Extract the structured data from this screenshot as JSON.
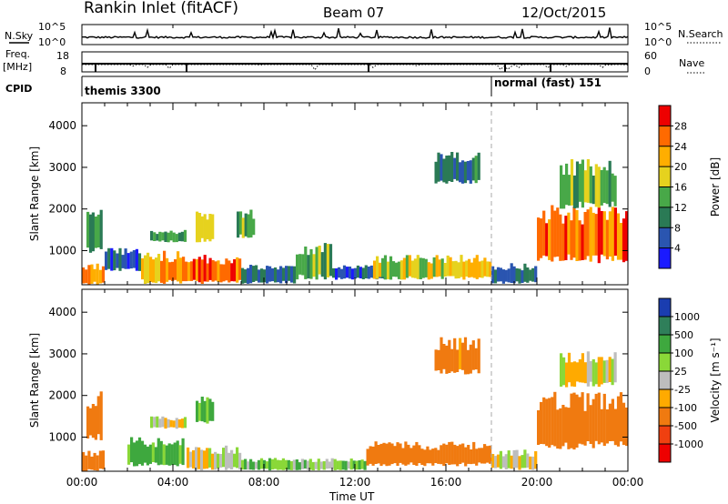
{
  "header": {
    "station": "Rankin Inlet (fitACF)",
    "beam": "Beam 07",
    "date": "12/Oct/2015"
  },
  "noise_panel": {
    "left_label": "N.Sky",
    "right_label": "N.Search",
    "left_ticks": [
      "10^5",
      "10^0"
    ],
    "right_ticks": [
      "10^5",
      "10^0"
    ]
  },
  "freq_panel": {
    "left_label_1": "Freq.",
    "left_label_2": "[MHz]",
    "right_label": "Nave",
    "left_ticks": [
      "18",
      "8"
    ],
    "right_ticks": [
      "60",
      "0"
    ]
  },
  "cpid": {
    "label": "CPID",
    "modes": [
      {
        "name": "themis 3300",
        "start_hour": 0
      },
      {
        "name": "normal (fast) 151",
        "start_hour": 18
      }
    ]
  },
  "chart_data": [
    {
      "type": "heatmap",
      "parameter": "Power",
      "colorbar_label": "Power [dB]",
      "colorbar_ticks": [
        "28",
        "24",
        "20",
        "16",
        "12",
        "8",
        "4"
      ],
      "colors": [
        "#ee0000",
        "#ff6a00",
        "#ffae00",
        "#e6d21e",
        "#48a848",
        "#2a7a55",
        "#2a55b0",
        "#1a1aff"
      ],
      "xlabel": "",
      "ylabel": "Slant Range [km]",
      "xlim": [
        0,
        24
      ],
      "ylim": [
        180,
        4550
      ],
      "y_ticks": [
        1000,
        2000,
        3000,
        4000
      ],
      "regions": [
        {
          "x": [
            0.0,
            1.0
          ],
          "y": [
            180,
            700
          ],
          "value": 24
        },
        {
          "x": [
            0.2,
            0.9
          ],
          "y": [
            900,
            2100
          ],
          "value": 14
        },
        {
          "x": [
            1.0,
            2.6
          ],
          "y": [
            500,
            1100
          ],
          "value": 6
        },
        {
          "x": [
            2.6,
            4.4
          ],
          "y": [
            200,
            1000
          ],
          "value": 22
        },
        {
          "x": [
            3.0,
            4.6
          ],
          "y": [
            1200,
            1500
          ],
          "value": 12
        },
        {
          "x": [
            4.4,
            7.0
          ],
          "y": [
            200,
            900
          ],
          "value": 27
        },
        {
          "x": [
            5.0,
            5.8
          ],
          "y": [
            1200,
            2000
          ],
          "value": 16
        },
        {
          "x": [
            6.8,
            7.6
          ],
          "y": [
            1300,
            2000
          ],
          "value": 14
        },
        {
          "x": [
            7.0,
            9.4
          ],
          "y": [
            200,
            700
          ],
          "value": 8
        },
        {
          "x": [
            9.4,
            11.0
          ],
          "y": [
            300,
            1200
          ],
          "value": 14
        },
        {
          "x": [
            11.0,
            13.5
          ],
          "y": [
            300,
            650
          ],
          "value": 6
        },
        {
          "x": [
            12.8,
            16.5
          ],
          "y": [
            300,
            900
          ],
          "value": 18
        },
        {
          "x": [
            15.5,
            17.5
          ],
          "y": [
            2600,
            3400
          ],
          "value": 10
        },
        {
          "x": [
            16.5,
            18.0
          ],
          "y": [
            300,
            900
          ],
          "value": 20
        },
        {
          "x": [
            18.0,
            20.0
          ],
          "y": [
            200,
            700
          ],
          "value": 8
        },
        {
          "x": [
            20.0,
            24.0
          ],
          "y": [
            700,
            2100
          ],
          "value": 26
        },
        {
          "x": [
            21.0,
            23.5
          ],
          "y": [
            2000,
            3200
          ],
          "value": 14
        }
      ]
    },
    {
      "type": "heatmap",
      "parameter": "Velocity",
      "colorbar_label": "Velocity [m s⁻¹]",
      "colorbar_ticks": [
        "1000",
        "500",
        "100",
        "25",
        "-25",
        "-100",
        "-500",
        "-1000"
      ],
      "colors": [
        "#1a3db0",
        "#2f7f5a",
        "#3ea83e",
        "#8ad838",
        "#bdbdbd",
        "#ffaa00",
        "#f07a10",
        "#f04010",
        "#ee0000"
      ],
      "xlabel": "Time UT",
      "ylabel": "Slant Range [km]",
      "xlim": [
        0,
        24
      ],
      "ylim": [
        180,
        4550
      ],
      "x_ticks": [
        "00:00",
        "04:00",
        "08:00",
        "12:00",
        "16:00",
        "20:00",
        "00:00"
      ],
      "y_ticks": [
        1000,
        2000,
        3000,
        4000
      ],
      "regions": [
        {
          "x": [
            0.0,
            1.0
          ],
          "y": [
            180,
            700
          ],
          "value": -300
        },
        {
          "x": [
            0.2,
            0.9
          ],
          "y": [
            900,
            2100
          ],
          "value": -150
        },
        {
          "x": [
            2.0,
            4.5
          ],
          "y": [
            300,
            1000
          ],
          "value": 120
        },
        {
          "x": [
            3.0,
            4.6
          ],
          "y": [
            1200,
            1500
          ],
          "value": 0
        },
        {
          "x": [
            4.6,
            7.0
          ],
          "y": [
            200,
            800
          ],
          "value": 0
        },
        {
          "x": [
            5.0,
            5.8
          ],
          "y": [
            1300,
            2000
          ],
          "value": 150
        },
        {
          "x": [
            7.0,
            12.5
          ],
          "y": [
            200,
            500
          ],
          "value": 60
        },
        {
          "x": [
            12.5,
            18.0
          ],
          "y": [
            300,
            900
          ],
          "value": -200
        },
        {
          "x": [
            15.5,
            17.5
          ],
          "y": [
            2500,
            3400
          ],
          "value": -150
        },
        {
          "x": [
            18.0,
            20.0
          ],
          "y": [
            200,
            700
          ],
          "value": 0
        },
        {
          "x": [
            20.0,
            24.0
          ],
          "y": [
            700,
            2100
          ],
          "value": -200
        },
        {
          "x": [
            21.0,
            23.5
          ],
          "y": [
            2200,
            3100
          ],
          "value": 0
        }
      ]
    }
  ]
}
